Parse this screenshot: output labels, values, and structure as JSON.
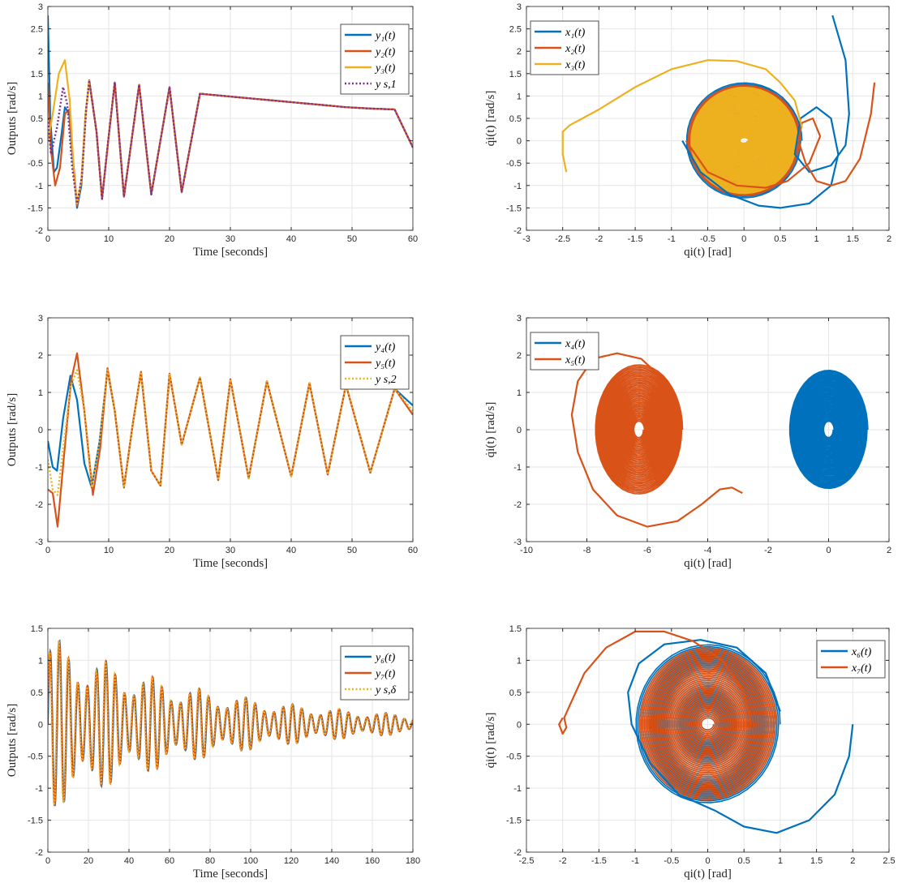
{
  "chart_data": [
    {
      "id": "p1",
      "type": "line",
      "xlabel": "Time [seconds]",
      "ylabel": "Outputs [rad/s]",
      "xlim": [
        0,
        60
      ],
      "ylim": [
        -2,
        3
      ],
      "xticks": [
        0,
        10,
        20,
        30,
        40,
        50,
        60
      ],
      "yticks": [
        -2,
        -1.5,
        -1,
        -0.5,
        0,
        0.5,
        1,
        1.5,
        2,
        2.5,
        3
      ],
      "ytick_labels": [
        "-2",
        "-1.5",
        "-1",
        "-0.5",
        "0",
        "0.5",
        "1",
        "1.5",
        "2",
        "2.5",
        "3"
      ],
      "grid": true,
      "legend_position": "top-right",
      "series": [
        {
          "name": "y1(t)",
          "legend": "y₁(t)",
          "color": "#0072BD",
          "style": "solid",
          "x": [
            0,
            0.4,
            1,
            1.5,
            2.2,
            2.8,
            3.5,
            4.2,
            4.8,
            5.5,
            6.2,
            6.8,
            8,
            8.9,
            10,
            11,
            12.5,
            15,
            17,
            20,
            22,
            25,
            29,
            33,
            37,
            41,
            45,
            49,
            53,
            57,
            60
          ],
          "y": [
            2.8,
            0.5,
            -0.7,
            -0.6,
            0.1,
            0.75,
            0.6,
            -0.6,
            -1.5,
            -1.0,
            0.6,
            1.35,
            0.2,
            -1.3,
            0.1,
            1.3,
            -1.25,
            1.25,
            -1.2,
            1.2,
            -1.15,
            1.05,
            1.0,
            0.95,
            0.9,
            0.85,
            0.8,
            0.75,
            0.72,
            0.7,
            -0.15
          ]
        },
        {
          "name": "y2(t)",
          "legend": "y₂(t)",
          "color": "#D95319",
          "style": "solid",
          "x": [
            0,
            0.5,
            1.2,
            2,
            2.8,
            3.5,
            4.2,
            4.8,
            5.5,
            6.2,
            6.8,
            8,
            8.9,
            10,
            11,
            12.5,
            15,
            17,
            20,
            22,
            25,
            29,
            33,
            37,
            41,
            45,
            49,
            53,
            57,
            60
          ],
          "y": [
            1.3,
            -0.2,
            -1.0,
            -0.6,
            0.6,
            0.7,
            -0.5,
            -1.45,
            -0.9,
            0.6,
            1.35,
            0.2,
            -1.3,
            0.1,
            1.3,
            -1.25,
            1.25,
            -1.2,
            1.2,
            -1.15,
            1.05,
            1.0,
            0.95,
            0.9,
            0.85,
            0.8,
            0.75,
            0.72,
            0.7,
            -0.15
          ]
        },
        {
          "name": "y3(t)",
          "legend": "y₃(t)",
          "color": "#EDB120",
          "style": "solid",
          "x": [
            0,
            0.8,
            1.8,
            2.8,
            3.6,
            4.3,
            4.8,
            5.5,
            6.2,
            6.8
          ],
          "y": [
            0.0,
            0.6,
            1.5,
            1.8,
            0.9,
            -0.8,
            -1.4,
            -0.9,
            0.6,
            1.35
          ]
        },
        {
          "name": "ys,1",
          "legend": "y s,1",
          "color": "#7E2F8E",
          "style": "dotted",
          "x": [
            0,
            0.5,
            1.5,
            2.5,
            3.2,
            4.0,
            4.8,
            5.6,
            6.3,
            6.8,
            8,
            8.9,
            10,
            11,
            12.5,
            15,
            17,
            20,
            22,
            25,
            29,
            33,
            37,
            41,
            45,
            49,
            53,
            57,
            60
          ],
          "y": [
            0.5,
            -0.3,
            0.3,
            1.2,
            0.8,
            -0.6,
            -1.4,
            -0.8,
            0.7,
            1.35,
            0.2,
            -1.3,
            0.1,
            1.3,
            -1.25,
            1.25,
            -1.2,
            1.2,
            -1.15,
            1.05,
            1.0,
            0.95,
            0.9,
            0.85,
            0.8,
            0.75,
            0.72,
            0.7,
            -0.15
          ]
        }
      ]
    },
    {
      "id": "p2",
      "type": "line",
      "xlabel": "qi(t) [rad]",
      "ylabel": "q̇i(t) [rad/s]",
      "xlim": [
        -3,
        2
      ],
      "ylim": [
        -2,
        3
      ],
      "xticks": [
        -3,
        -2.5,
        -2,
        -1.5,
        -1,
        -0.5,
        0,
        0.5,
        1,
        1.5,
        2
      ],
      "xtick_labels": [
        "-3",
        "-2.5",
        "-2",
        "-1.5",
        "-1",
        "-0.5",
        "0",
        "0.5",
        "1",
        "1.5",
        "2"
      ],
      "yticks": [
        -2,
        -1.5,
        -1,
        -0.5,
        0,
        0.5,
        1,
        1.5,
        2,
        2.5,
        3
      ],
      "ytick_labels": [
        "-2",
        "-1.5",
        "-1",
        "-0.5",
        "0",
        "0.5",
        "1",
        "1.5",
        "2",
        "2.5",
        "3"
      ],
      "grid": true,
      "legend_position": "top-left",
      "series": [
        {
          "name": "x1(t)",
          "legend": "x₁(t)",
          "color": "#0072BD",
          "x": [
            1.22,
            1.4,
            1.45,
            1.4,
            1.2,
            0.9,
            0.7,
            0.78,
            1.0,
            1.2,
            1.3,
            1.2,
            0.9,
            0.5,
            0.2,
            -0.2,
            -0.6,
            -0.85
          ],
          "y": [
            2.8,
            1.8,
            0.6,
            -0.1,
            -0.55,
            -0.7,
            -0.3,
            0.5,
            0.75,
            0.5,
            -0.3,
            -1.0,
            -1.4,
            -1.5,
            -1.45,
            -1.2,
            -0.7,
            0.0
          ]
        },
        {
          "name": "x2(t)",
          "legend": "x₂(t)",
          "color": "#D95319",
          "x": [
            1.8,
            1.75,
            1.6,
            1.4,
            1.2,
            1.0,
            0.85,
            0.75,
            0.8,
            0.95,
            1.05,
            0.9,
            0.6,
            0.3,
            -0.1,
            -0.5,
            -0.8
          ],
          "y": [
            1.3,
            0.6,
            -0.4,
            -0.9,
            -1.0,
            -0.9,
            -0.5,
            0.0,
            0.4,
            0.5,
            0.1,
            -0.5,
            -0.9,
            -1.05,
            -1.0,
            -0.7,
            0.0
          ]
        },
        {
          "name": "x3(t)",
          "legend": "x₃(t)",
          "color": "#EDB120",
          "x": [
            -2.45,
            -2.5,
            -2.5,
            -2.4,
            -2.0,
            -1.5,
            -1.0,
            -0.5,
            -0.1,
            0.3,
            0.5,
            0.7,
            0.8
          ],
          "y": [
            -0.7,
            -0.3,
            0.2,
            0.35,
            0.7,
            1.2,
            1.6,
            1.8,
            1.78,
            1.6,
            1.3,
            0.9,
            0.3
          ]
        }
      ],
      "spiral_groups": [
        {
          "color": "#0072BD",
          "cx": 0.0,
          "r_outer": 0.8,
          "r_inner": 0.05,
          "ry_outer": 1.3,
          "ry_inner": 0.05
        },
        {
          "color": "#D95319",
          "cx": 0.0,
          "r_outer": 0.78,
          "r_inner": 0.05,
          "ry_outer": 1.25,
          "ry_inner": 0.05
        },
        {
          "color": "#EDB120",
          "cx": 0.0,
          "r_outer": 0.74,
          "r_inner": 0.05,
          "ry_outer": 1.2,
          "ry_inner": 0.05
        }
      ]
    },
    {
      "id": "p3",
      "type": "line",
      "xlabel": "Time [seconds]",
      "ylabel": "Outputs [rad/s]",
      "xlim": [
        0,
        60
      ],
      "ylim": [
        -3,
        3
      ],
      "xticks": [
        0,
        10,
        20,
        30,
        40,
        50,
        60
      ],
      "yticks": [
        -3,
        -2,
        -1,
        0,
        1,
        2,
        3
      ],
      "ytick_labels": [
        "-3",
        "-2",
        "-1",
        "0",
        "1",
        "2",
        "3"
      ],
      "grid": true,
      "legend_position": "top-right",
      "series": [
        {
          "name": "y4(t)",
          "legend": "y₄(t)",
          "color": "#0072BD",
          "style": "solid",
          "x": [
            0,
            0.8,
            1.5,
            2.5,
            3.7,
            4.8,
            6,
            7.2,
            8.5,
            9.8,
            11,
            12.5,
            14,
            15.3,
            17,
            18.5,
            20,
            22,
            25,
            28,
            30,
            33,
            36,
            40,
            43,
            46,
            49,
            53,
            57,
            60
          ],
          "y": [
            -0.3,
            -1.0,
            -1.1,
            0.3,
            1.45,
            0.8,
            -0.9,
            -1.55,
            -0.3,
            1.6,
            0.5,
            -1.55,
            0.2,
            1.55,
            -1.1,
            -1.5,
            1.5,
            -0.4,
            1.4,
            -1.35,
            1.35,
            -1.3,
            1.3,
            -1.25,
            1.25,
            -1.2,
            1.2,
            -1.15,
            1.1,
            0.65
          ]
        },
        {
          "name": "y5(t)",
          "legend": "y₅(t)",
          "color": "#D95319",
          "style": "solid",
          "x": [
            0,
            0.8,
            1.6,
            2.6,
            3.8,
            4.8,
            6,
            7.4,
            8.6,
            9.8,
            11,
            12.5,
            14,
            15.3,
            17,
            18.5,
            20,
            22,
            25,
            28,
            30,
            33,
            36,
            40,
            43,
            46,
            49,
            53,
            57,
            60
          ],
          "y": [
            -1.6,
            -1.7,
            -2.6,
            -0.8,
            1.3,
            2.05,
            0.5,
            -1.75,
            -0.5,
            1.65,
            0.5,
            -1.55,
            0.2,
            1.55,
            -1.1,
            -1.5,
            1.5,
            -0.4,
            1.4,
            -1.35,
            1.35,
            -1.3,
            1.3,
            -1.25,
            1.25,
            -1.2,
            1.2,
            -1.15,
            1.1,
            0.4
          ]
        },
        {
          "name": "ys,2",
          "legend": "y s,2",
          "color": "#EDB120",
          "style": "dotted",
          "x": [
            0,
            0.8,
            1.6,
            2.6,
            3.8,
            4.8,
            6,
            7.2,
            8.5,
            9.8,
            11,
            12.5,
            14,
            15.3,
            17,
            18.5,
            20,
            22,
            25,
            28,
            30,
            33,
            36,
            40,
            43,
            46,
            49,
            53,
            57,
            60
          ],
          "y": [
            -0.8,
            -1.6,
            -1.75,
            -0.4,
            1.2,
            1.6,
            0.5,
            -1.55,
            -0.3,
            1.6,
            0.5,
            -1.55,
            0.2,
            1.55,
            -1.1,
            -1.5,
            1.5,
            -0.4,
            1.4,
            -1.35,
            1.35,
            -1.3,
            1.3,
            -1.25,
            1.25,
            -1.2,
            1.2,
            -1.15,
            1.1,
            0.5
          ]
        }
      ]
    },
    {
      "id": "p4",
      "type": "line",
      "xlabel": "qi(t) [rad]",
      "ylabel": "q̇i(t) [rad/s]",
      "xlim": [
        -10,
        2
      ],
      "ylim": [
        -3,
        3
      ],
      "xticks": [
        -10,
        -8,
        -6,
        -4,
        -2,
        0,
        2
      ],
      "xtick_labels": [
        "-10",
        "-8",
        "-6",
        "-4",
        "-2",
        "0",
        "2"
      ],
      "yticks": [
        -3,
        -2,
        -1,
        0,
        1,
        2,
        3
      ],
      "ytick_labels": [
        "-3",
        "-2",
        "-1",
        "0",
        "1",
        "2",
        "3"
      ],
      "grid": true,
      "legend_position": "top-left",
      "series": [
        {
          "name": "x4(t)",
          "legend": "x₄(t)",
          "color": "#0072BD",
          "x": [],
          "y": []
        },
        {
          "name": "x5(t)",
          "legend": "x₅(t)",
          "color": "#D95319",
          "x": [
            -2.85,
            -3.2,
            -3.6,
            -4.2,
            -5.0,
            -6.0,
            -7.0,
            -7.8,
            -8.3,
            -8.5,
            -8.3,
            -7.8,
            -7.0,
            -6.2,
            -5.4,
            -5.0
          ],
          "y": [
            -1.7,
            -1.55,
            -1.6,
            -2.0,
            -2.45,
            -2.6,
            -2.3,
            -1.6,
            -0.6,
            0.4,
            1.3,
            1.9,
            2.05,
            1.9,
            1.3,
            0.6
          ]
        }
      ],
      "spiral_groups": [
        {
          "color": "#0072BD",
          "cx": 0.0,
          "r_outer": 1.3,
          "r_inner": 0.15,
          "ry_outer": 1.6,
          "ry_inner": 0.2
        },
        {
          "color": "#D95319",
          "cx": -6.28,
          "r_outer": 1.45,
          "r_inner": 0.15,
          "ry_outer": 1.75,
          "ry_inner": 0.2
        }
      ]
    },
    {
      "id": "p5",
      "type": "line",
      "xlabel": "Time [seconds]",
      "ylabel": "Outputs [rad/s]",
      "xlim": [
        0,
        180
      ],
      "ylim": [
        -2,
        1.5
      ],
      "xticks": [
        0,
        20,
        40,
        60,
        80,
        100,
        120,
        140,
        160,
        180
      ],
      "yticks": [
        -2,
        -1.5,
        -1,
        -0.5,
        0,
        0.5,
        1,
        1.5
      ],
      "ytick_labels": [
        "-2",
        "-1.5",
        "-1",
        "-0.5",
        "0",
        "0.5",
        "1",
        "1.5"
      ],
      "grid": true,
      "legend_position": "top-right",
      "series": [
        {
          "name": "y6(t)",
          "legend": "y₆(t)",
          "color": "#0072BD",
          "style": "solid",
          "x": [],
          "y": []
        },
        {
          "name": "y7(t)",
          "legend": "y₇(t)",
          "color": "#D95319",
          "style": "solid",
          "x": [],
          "y": []
        },
        {
          "name": "ys,δ",
          "legend": "y s,δ",
          "color": "#EDB120",
          "style": "dotted",
          "x": [],
          "y": []
        }
      ],
      "oscillation_model": {
        "t_start": 0,
        "t_end": 180,
        "period": 4.6,
        "amp_start": 1.4,
        "amp_end": 0.15
      }
    },
    {
      "id": "p6",
      "type": "line",
      "xlabel": "qi(t) [rad]",
      "ylabel": "q̇i(t) [rad/s]",
      "xlim": [
        -2.5,
        2.5
      ],
      "ylim": [
        -2,
        1.5
      ],
      "xticks": [
        -2.5,
        -2,
        -1.5,
        -1,
        -0.5,
        0,
        0.5,
        1,
        1.5,
        2,
        2.5
      ],
      "xtick_labels": [
        "-2.5",
        "-2",
        "-1.5",
        "-1",
        "-0.5",
        "0",
        "0.5",
        "1",
        "1.5",
        "2",
        "2.5"
      ],
      "yticks": [
        -2,
        -1.5,
        -1,
        -0.5,
        0,
        0.5,
        1,
        1.5
      ],
      "ytick_labels": [
        "-2",
        "-1.5",
        "-1",
        "-0.5",
        "0",
        "0.5",
        "1",
        "1.5"
      ],
      "grid": true,
      "legend_position": "top-right",
      "series": [
        {
          "name": "x6(t)",
          "legend": "x₆(t)",
          "color": "#0072BD",
          "x": [
            2.0,
            1.95,
            1.75,
            1.4,
            0.95,
            0.5,
            0.1,
            -0.4,
            -0.8,
            -1.05,
            -1.1,
            -0.95,
            -0.6,
            -0.1,
            0.4,
            0.8,
            1.0
          ],
          "y": [
            0.0,
            -0.5,
            -1.1,
            -1.5,
            -1.7,
            -1.6,
            -1.35,
            -1.1,
            -0.6,
            0.0,
            0.5,
            0.95,
            1.25,
            1.32,
            1.2,
            0.8,
            0.2
          ]
        },
        {
          "name": "x7(t)",
          "legend": "x₇(t)",
          "color": "#D95319",
          "x": [
            -2.0,
            -2.05,
            -2.0,
            -1.95,
            -1.98,
            -1.9,
            -1.7,
            -1.4,
            -1.0,
            -0.6,
            -0.2,
            0.2,
            0.5,
            0.6
          ],
          "y": [
            0.1,
            0.0,
            -0.15,
            -0.05,
            0.1,
            0.3,
            0.8,
            1.2,
            1.45,
            1.45,
            1.3,
            1.0,
            0.5,
            0.0
          ]
        }
      ],
      "spiral_groups": [
        {
          "color": "#0072BD",
          "cx": 0.0,
          "r_outer": 1.0,
          "r_inner": 0.08,
          "ry_outer": 1.25,
          "ry_inner": 0.08
        },
        {
          "color": "#D95319",
          "cx": 0.0,
          "r_outer": 0.95,
          "r_inner": 0.08,
          "ry_outer": 1.2,
          "ry_inner": 0.08
        }
      ]
    }
  ]
}
